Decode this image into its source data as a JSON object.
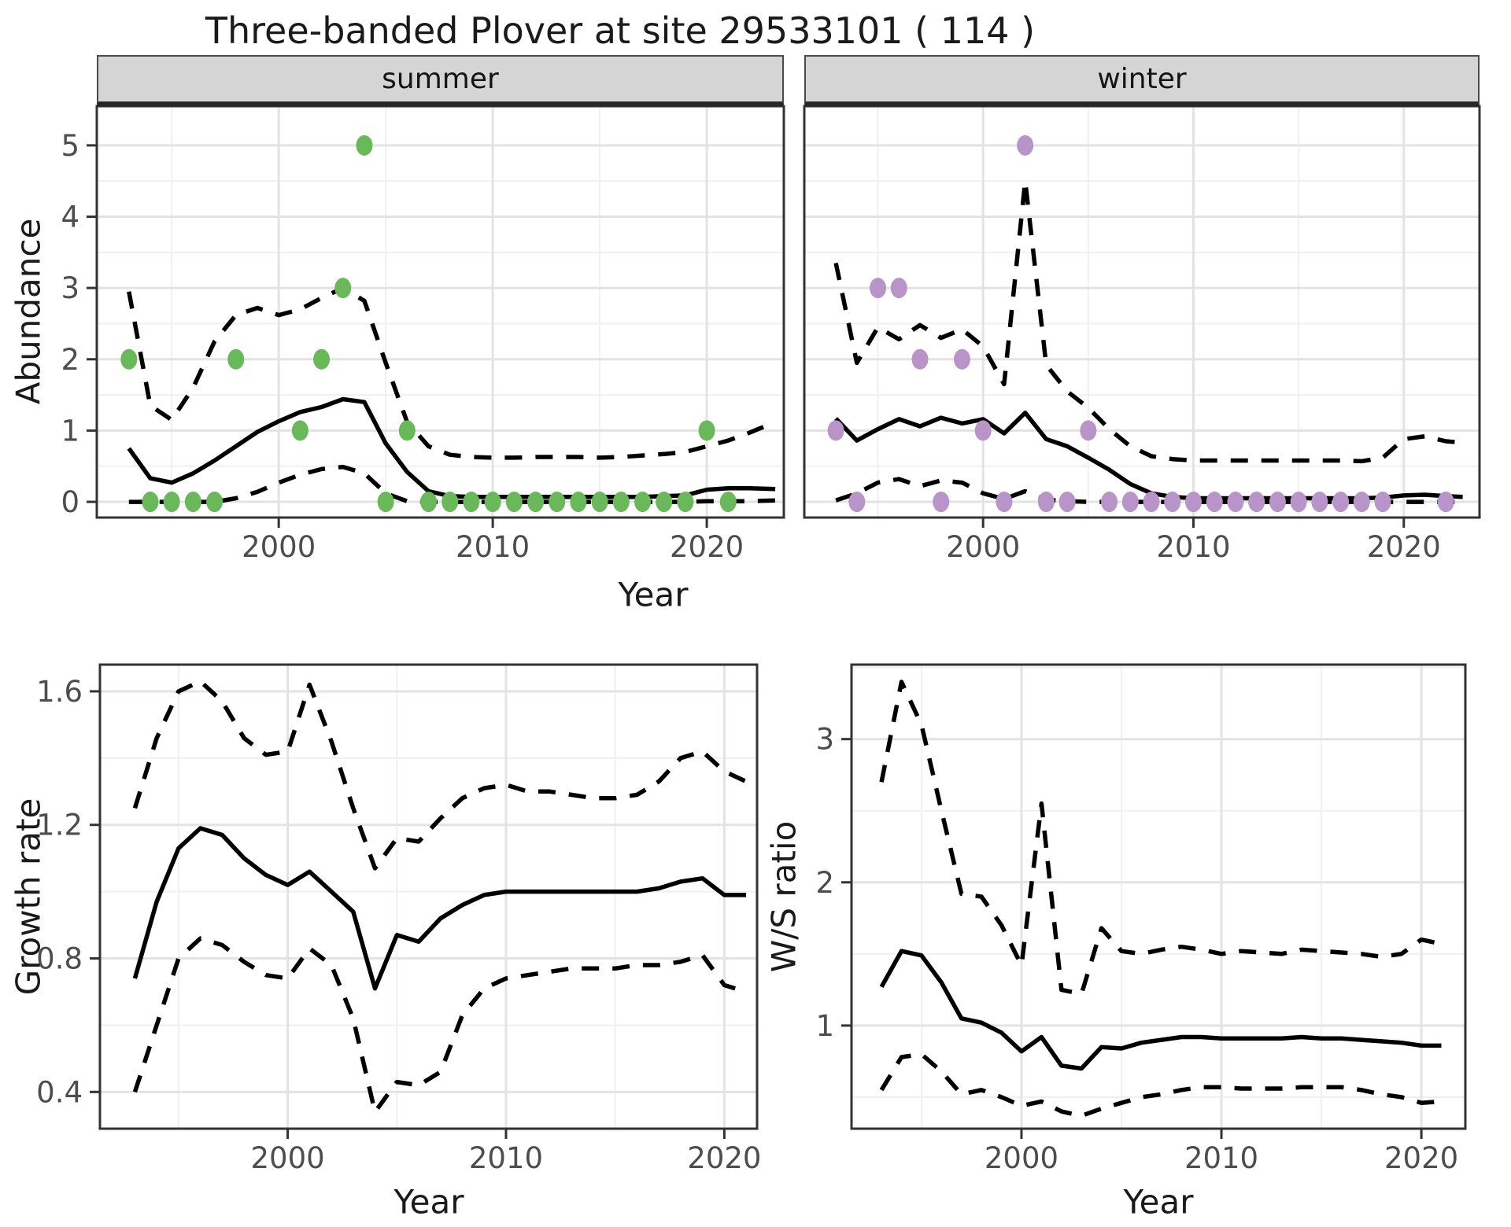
{
  "title": "Three-banded Plover at site 29533101 ( 114 )",
  "colors": {
    "summer_point": "#69b95a",
    "winter_point": "#b894c8",
    "line": "#000000",
    "panel_bg": "#ffffff",
    "panel_border": "#333333",
    "grid_major": "#e3e3e3",
    "grid_minor": "#f0f0f0",
    "strip_bg": "#d5d5d5",
    "tick_mark": "#333333",
    "tick_label": "#4d4d4d",
    "axis_title": "#1a1a1a"
  },
  "chart_data": [
    {
      "key": "summer",
      "type": "line",
      "facet_label": "summer",
      "xlabel": "Year",
      "ylabel": "Abundance",
      "xlim": [
        1991.5,
        2023.6
      ],
      "ylim": [
        -0.22,
        5.55
      ],
      "xticks": [
        2000,
        2010,
        2020
      ],
      "xtick_labels": [
        "2000",
        "2010",
        "2020"
      ],
      "xticks_minor": [
        1995,
        2005,
        2015
      ],
      "yticks": [
        0,
        1,
        2,
        3,
        4,
        5
      ],
      "ytick_labels": [
        "0",
        "1",
        "2",
        "3",
        "4",
        "5"
      ],
      "yticks_minor": [
        0.5,
        1.5,
        2.5,
        3.5,
        4.5
      ],
      "grid": true,
      "legend": "none",
      "series": [
        {
          "name": "fit",
          "style": "solid",
          "x": [
            1993,
            1994,
            1995,
            1996,
            1997,
            1998,
            1999,
            2000,
            2001,
            2002,
            2003,
            2004,
            2005,
            2006,
            2007,
            2008,
            2009,
            2010,
            2011,
            2012,
            2013,
            2014,
            2015,
            2016,
            2017,
            2018,
            2019,
            2020,
            2021,
            2022,
            2023.2
          ],
          "y": [
            0.75,
            0.33,
            0.27,
            0.4,
            0.58,
            0.78,
            0.98,
            1.13,
            1.26,
            1.33,
            1.44,
            1.4,
            0.82,
            0.42,
            0.15,
            0.08,
            0.07,
            0.07,
            0.07,
            0.07,
            0.07,
            0.07,
            0.07,
            0.07,
            0.07,
            0.08,
            0.09,
            0.17,
            0.19,
            0.19,
            0.18
          ]
        },
        {
          "name": "ci_upper",
          "style": "dashed",
          "x": [
            1993,
            1994,
            1995,
            1996,
            1997,
            1998,
            1999,
            2000,
            2001,
            2002,
            2003,
            2004,
            2005,
            2006,
            2007,
            2008,
            2009,
            2010,
            2011,
            2012,
            2013,
            2014,
            2015,
            2016,
            2017,
            2018,
            2019,
            2020,
            2021,
            2022,
            2023.2
          ],
          "y": [
            2.95,
            1.35,
            1.15,
            1.6,
            2.25,
            2.62,
            2.72,
            2.62,
            2.7,
            2.86,
            3.0,
            2.82,
            1.95,
            1.12,
            0.78,
            0.66,
            0.63,
            0.62,
            0.62,
            0.63,
            0.63,
            0.63,
            0.62,
            0.63,
            0.65,
            0.67,
            0.7,
            0.78,
            0.86,
            0.97,
            1.12
          ]
        },
        {
          "name": "ci_lower",
          "style": "dashed",
          "x": [
            1993,
            1994,
            1995,
            1996,
            1997,
            1998,
            1999,
            2000,
            2001,
            2002,
            2003,
            2004,
            2005,
            2006,
            2007,
            2008,
            2009,
            2010,
            2011,
            2012,
            2013,
            2014,
            2015,
            2016,
            2017,
            2018,
            2019,
            2020,
            2021,
            2022,
            2023.2
          ],
          "y": [
            0,
            0,
            0,
            0,
            0,
            0.05,
            0.14,
            0.27,
            0.38,
            0.46,
            0.49,
            0.4,
            0.12,
            0.01,
            0,
            0,
            0,
            0,
            0,
            0,
            0,
            0,
            0,
            0,
            0,
            0,
            0,
            0.01,
            0.01,
            0.01,
            0.02
          ]
        }
      ],
      "points": {
        "name": "observed_counts",
        "color_key": "summer_point",
        "x": [
          1993,
          1994,
          1995,
          1996,
          1997,
          1998,
          2001,
          2002,
          2003,
          2004,
          2005,
          2006,
          2007,
          2008,
          2009,
          2010,
          2011,
          2012,
          2013,
          2014,
          2015,
          2016,
          2017,
          2018,
          2019,
          2020,
          2021
        ],
        "y": [
          2,
          0,
          0,
          0,
          0,
          2,
          1,
          2,
          3,
          5,
          0,
          1,
          0,
          0,
          0,
          0,
          0,
          0,
          0,
          0,
          0,
          0,
          0,
          0,
          0,
          1,
          0
        ]
      }
    },
    {
      "key": "winter",
      "type": "line",
      "facet_label": "winter",
      "xlim": [
        1991.5,
        2023.6
      ],
      "ylim": [
        -0.22,
        5.55
      ],
      "xticks": [
        2000,
        2010,
        2020
      ],
      "xtick_labels": [
        "2000",
        "2010",
        "2020"
      ],
      "xticks_minor": [
        1995,
        2005,
        2015
      ],
      "yticks": [
        0,
        1,
        2,
        3,
        4,
        5
      ],
      "yticks_minor": [
        0.5,
        1.5,
        2.5,
        3.5,
        4.5
      ],
      "grid": true,
      "legend": "none",
      "series": [
        {
          "name": "fit",
          "style": "solid",
          "x": [
            1993,
            1994,
            1995,
            1996,
            1997,
            1998,
            1999,
            2000,
            2001,
            2002,
            2003,
            2004,
            2005,
            2006,
            2007,
            2008,
            2009,
            2010,
            2011,
            2012,
            2013,
            2014,
            2015,
            2016,
            2017,
            2018,
            2019,
            2020,
            2021,
            2022,
            2022.8
          ],
          "y": [
            1.17,
            0.86,
            1.02,
            1.16,
            1.06,
            1.18,
            1.1,
            1.16,
            0.96,
            1.25,
            0.88,
            0.78,
            0.62,
            0.45,
            0.25,
            0.12,
            0.07,
            0.05,
            0.05,
            0.05,
            0.05,
            0.05,
            0.05,
            0.05,
            0.05,
            0.05,
            0.06,
            0.09,
            0.1,
            0.08,
            0.07
          ]
        },
        {
          "name": "ci_upper",
          "style": "dashed",
          "x": [
            1993,
            1994,
            1995,
            1996,
            1997,
            1998,
            1999,
            2000,
            2001,
            2002,
            2003,
            2004,
            2005,
            2006,
            2007,
            2008,
            2009,
            2010,
            2011,
            2012,
            2013,
            2014,
            2015,
            2016,
            2017,
            2018,
            2019,
            2020,
            2021,
            2022,
            2022.8
          ],
          "y": [
            3.35,
            1.95,
            2.45,
            2.28,
            2.48,
            2.3,
            2.42,
            2.18,
            1.65,
            4.5,
            1.92,
            1.55,
            1.32,
            1.02,
            0.78,
            0.64,
            0.6,
            0.58,
            0.58,
            0.58,
            0.58,
            0.58,
            0.58,
            0.58,
            0.58,
            0.57,
            0.62,
            0.88,
            0.92,
            0.85,
            0.83
          ]
        },
        {
          "name": "ci_lower",
          "style": "dashed",
          "x": [
            1993,
            1994,
            1995,
            1996,
            1997,
            1998,
            1999,
            2000,
            2001,
            2002,
            2003,
            2004,
            2005,
            2006,
            2007,
            2008,
            2009,
            2010,
            2011,
            2012,
            2013,
            2014,
            2015,
            2016,
            2017,
            2018,
            2019,
            2020,
            2021,
            2022,
            2022.8
          ],
          "y": [
            0.02,
            0.12,
            0.27,
            0.32,
            0.22,
            0.3,
            0.27,
            0.12,
            0.04,
            0.15,
            0.03,
            0.01,
            0,
            0,
            0,
            0,
            0,
            0,
            0,
            0,
            0,
            0,
            0,
            0,
            0,
            0,
            0,
            0,
            0,
            0,
            0
          ]
        }
      ],
      "points": {
        "name": "observed_counts",
        "color_key": "winter_point",
        "x": [
          1993,
          1994,
          1995,
          1996,
          1997,
          1998,
          1999,
          2000,
          2001,
          2002,
          2003,
          2004,
          2005,
          2006,
          2007,
          2008,
          2009,
          2010,
          2011,
          2012,
          2013,
          2014,
          2015,
          2016,
          2017,
          2018,
          2019,
          2022
        ],
        "y": [
          1,
          0,
          3,
          3,
          2,
          0,
          2,
          1,
          0,
          5,
          0,
          0,
          1,
          0,
          0,
          0,
          0,
          0,
          0,
          0,
          0,
          0,
          0,
          0,
          0,
          0,
          0,
          0
        ]
      }
    },
    {
      "key": "growth_rate",
      "type": "line",
      "xlabel": "Year",
      "ylabel": "Growth rate",
      "xlim": [
        1991.4,
        2021.5
      ],
      "ylim": [
        0.29,
        1.68
      ],
      "xticks": [
        2000,
        2010,
        2020
      ],
      "xtick_labels": [
        "2000",
        "2010",
        "2020"
      ],
      "xticks_minor": [
        1995,
        2005,
        2015
      ],
      "yticks": [
        0.4,
        0.8,
        1.2,
        1.6
      ],
      "ytick_labels": [
        "0.4",
        "0.8",
        "1.2",
        "1.6"
      ],
      "yticks_minor": [
        0.6,
        1.0,
        1.4
      ],
      "grid": true,
      "legend": "none",
      "series": [
        {
          "name": "fit",
          "style": "solid",
          "x": [
            1993,
            1994,
            1995,
            1996,
            1997,
            1998,
            1999,
            2000,
            2001,
            2002,
            2003,
            2004,
            2005,
            2006,
            2007,
            2008,
            2009,
            2010,
            2011,
            2012,
            2013,
            2014,
            2015,
            2016,
            2017,
            2018,
            2019,
            2020,
            2021
          ],
          "y": [
            0.74,
            0.97,
            1.13,
            1.19,
            1.17,
            1.1,
            1.05,
            1.02,
            1.06,
            1.0,
            0.94,
            0.71,
            0.87,
            0.85,
            0.92,
            0.96,
            0.99,
            1.0,
            1.0,
            1.0,
            1.0,
            1.0,
            1.0,
            1.0,
            1.01,
            1.03,
            1.04,
            0.99,
            0.99
          ]
        },
        {
          "name": "ci_upper",
          "style": "dashed",
          "x": [
            1993,
            1994,
            1995,
            1996,
            1997,
            1998,
            1999,
            2000,
            2001,
            2002,
            2003,
            2004,
            2005,
            2006,
            2007,
            2008,
            2009,
            2010,
            2011,
            2012,
            2013,
            2014,
            2015,
            2016,
            2017,
            2018,
            2019,
            2020,
            2021
          ],
          "y": [
            1.25,
            1.46,
            1.6,
            1.63,
            1.57,
            1.46,
            1.41,
            1.42,
            1.62,
            1.45,
            1.25,
            1.07,
            1.16,
            1.15,
            1.22,
            1.28,
            1.31,
            1.32,
            1.3,
            1.3,
            1.29,
            1.28,
            1.28,
            1.29,
            1.33,
            1.4,
            1.42,
            1.36,
            1.33
          ]
        },
        {
          "name": "ci_lower",
          "style": "dashed",
          "x": [
            1993,
            1994,
            1995,
            1996,
            1997,
            1998,
            1999,
            2000,
            2001,
            2002,
            2003,
            2004,
            2005,
            2006,
            2007,
            2008,
            2009,
            2010,
            2011,
            2012,
            2013,
            2014,
            2015,
            2016,
            2017,
            2018,
            2019,
            2020,
            2021
          ],
          "y": [
            0.4,
            0.6,
            0.8,
            0.86,
            0.84,
            0.79,
            0.75,
            0.74,
            0.83,
            0.78,
            0.62,
            0.34,
            0.43,
            0.42,
            0.46,
            0.63,
            0.71,
            0.74,
            0.75,
            0.76,
            0.77,
            0.77,
            0.77,
            0.78,
            0.78,
            0.79,
            0.81,
            0.72,
            0.7
          ]
        }
      ]
    },
    {
      "key": "ws_ratio",
      "type": "line",
      "xlabel": "Year",
      "ylabel": "W/S ratio",
      "xlim": [
        1991.5,
        2022.2
      ],
      "ylim": [
        0.28,
        3.52
      ],
      "xticks": [
        2000,
        2010,
        2020
      ],
      "xtick_labels": [
        "2000",
        "2010",
        "2020"
      ],
      "xticks_minor": [
        1995,
        2005,
        2015
      ],
      "yticks": [
        1,
        2,
        3
      ],
      "ytick_labels": [
        "1",
        "2",
        "3"
      ],
      "yticks_minor": [
        0.5,
        1.5,
        2.5,
        3.5
      ],
      "grid": true,
      "legend": "none",
      "series": [
        {
          "name": "fit",
          "style": "solid",
          "x": [
            1993,
            1994,
            1995,
            1996,
            1997,
            1998,
            1999,
            2000,
            2001,
            2002,
            2003,
            2004,
            2005,
            2006,
            2007,
            2008,
            2009,
            2010,
            2011,
            2012,
            2013,
            2014,
            2015,
            2016,
            2017,
            2018,
            2019,
            2020,
            2021
          ],
          "y": [
            1.27,
            1.52,
            1.49,
            1.3,
            1.05,
            1.02,
            0.95,
            0.82,
            0.92,
            0.72,
            0.7,
            0.85,
            0.84,
            0.88,
            0.9,
            0.92,
            0.92,
            0.91,
            0.91,
            0.91,
            0.91,
            0.92,
            0.91,
            0.91,
            0.9,
            0.89,
            0.88,
            0.86,
            0.86
          ]
        },
        {
          "name": "ci_upper",
          "style": "dashed",
          "x": [
            1993,
            1994,
            1995,
            1996,
            1997,
            1998,
            1999,
            2000,
            2001,
            2002,
            2003,
            2004,
            2005,
            2006,
            2007,
            2008,
            2009,
            2010,
            2011,
            2012,
            2013,
            2014,
            2015,
            2016,
            2017,
            2018,
            2019,
            2020,
            2021
          ],
          "y": [
            2.7,
            3.4,
            3.1,
            2.5,
            1.92,
            1.9,
            1.7,
            1.42,
            2.55,
            1.25,
            1.22,
            1.68,
            1.52,
            1.5,
            1.53,
            1.55,
            1.53,
            1.5,
            1.52,
            1.51,
            1.5,
            1.53,
            1.52,
            1.51,
            1.5,
            1.48,
            1.5,
            1.6,
            1.57
          ]
        },
        {
          "name": "ci_lower",
          "style": "dashed",
          "x": [
            1993,
            1994,
            1995,
            1996,
            1997,
            1998,
            1999,
            2000,
            2001,
            2002,
            2003,
            2004,
            2005,
            2006,
            2007,
            2008,
            2009,
            2010,
            2011,
            2012,
            2013,
            2014,
            2015,
            2016,
            2017,
            2018,
            2019,
            2020,
            2021
          ],
          "y": [
            0.55,
            0.78,
            0.8,
            0.68,
            0.52,
            0.55,
            0.5,
            0.44,
            0.47,
            0.4,
            0.37,
            0.42,
            0.46,
            0.5,
            0.52,
            0.55,
            0.57,
            0.57,
            0.56,
            0.56,
            0.56,
            0.57,
            0.57,
            0.57,
            0.55,
            0.52,
            0.5,
            0.46,
            0.47
          ]
        }
      ]
    }
  ]
}
